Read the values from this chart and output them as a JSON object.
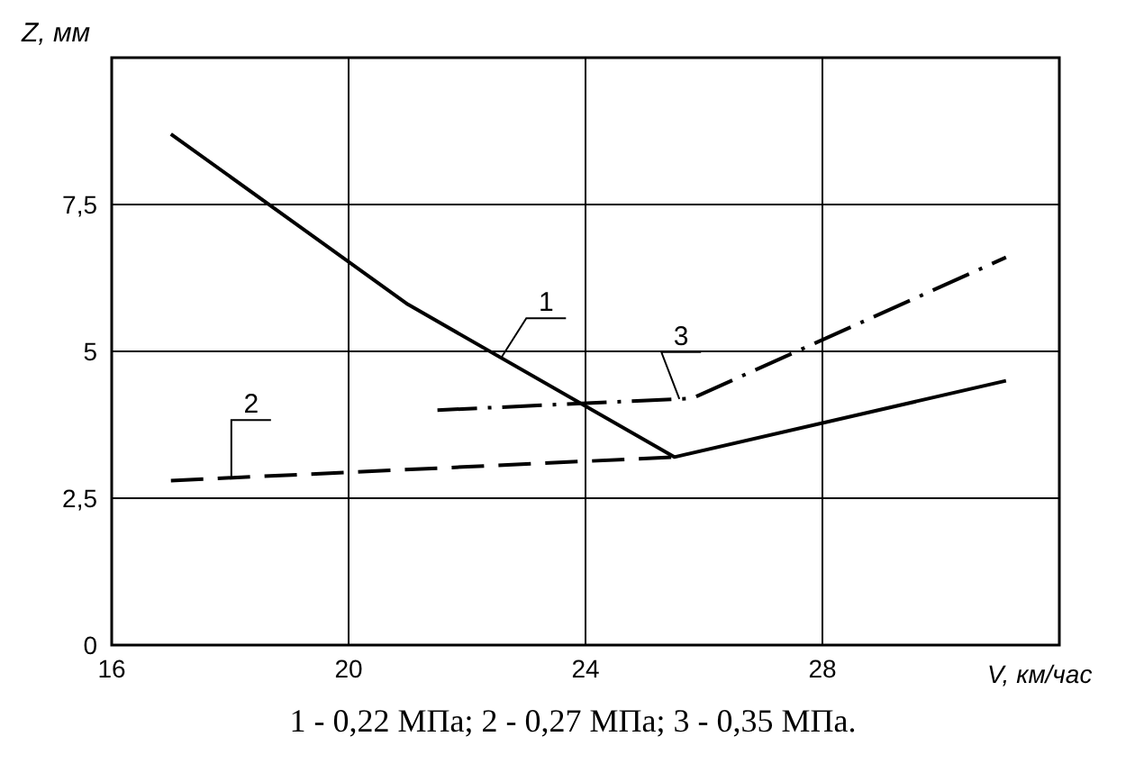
{
  "chart_data": {
    "type": "line",
    "xlabel": "V, км/час",
    "ylabel": "Z, мм",
    "xlim": [
      16,
      32
    ],
    "xticks": [
      16,
      20,
      24,
      28
    ],
    "ylim": [
      0,
      10
    ],
    "yticks": [
      0,
      {
        "value": 2.5,
        "label": "2,5"
      },
      5,
      {
        "value": 7.5,
        "label": "7,5"
      }
    ],
    "grid": true,
    "marker": "none",
    "series": [
      {
        "name": "1",
        "color": "#000000",
        "line_style": "solid",
        "x": [
          17,
          21,
          25.5,
          31.1
        ],
        "values": [
          8.7,
          5.8,
          3.2,
          4.5
        ]
      },
      {
        "name": "2",
        "color": "#000000",
        "line_style": "dashed",
        "x": [
          17,
          25.5
        ],
        "values": [
          2.8,
          3.2
        ]
      },
      {
        "name": "3",
        "color": "#000000",
        "line_style": "dashdot",
        "x": [
          21.5,
          25.8,
          31.1
        ],
        "values": [
          4.0,
          4.2,
          6.6
        ]
      }
    ],
    "annotations": [
      "1 - 0,22 МПа; 2 - 0,27 МПа; 3 - 0,35 МПа."
    ]
  }
}
